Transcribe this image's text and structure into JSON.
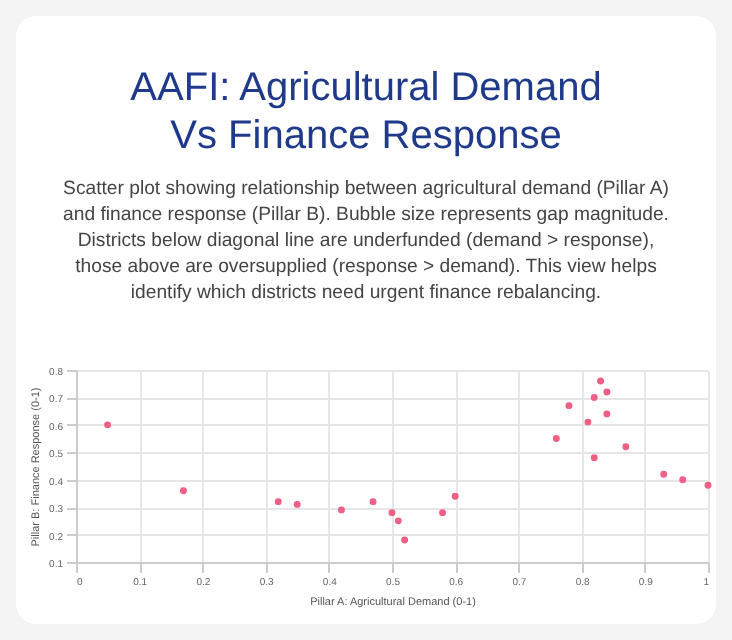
{
  "chart_data": {
    "type": "scatter",
    "title": "AAFI: Agricultural Demand\nVs Finance Response",
    "subtitle": "Scatter plot showing relationship between agricultural demand (Pillar A) and finance response (Pillar B). Bubble size represents gap magnitude. Districts below diagonal line are underfunded (demand > response), those above are oversupplied (response > demand). This view helps identify which districts need urgent finance rebalancing.",
    "xlabel": "Pillar A: Agricultural Demand (0-1)",
    "ylabel": "Pillar B: Finance Response (0-1)",
    "x": [
      0.05,
      0.17,
      0.32,
      0.35,
      0.42,
      0.47,
      0.5,
      0.51,
      0.52,
      0.58,
      0.6,
      0.76,
      0.78,
      0.81,
      0.82,
      0.82,
      0.83,
      0.84,
      0.84,
      0.87,
      0.93,
      0.96,
      1.0
    ],
    "series": [
      {
        "color": "#ef5f86",
        "values": [
          0.6,
          0.36,
          0.32,
          0.31,
          0.29,
          0.32,
          0.28,
          0.25,
          0.18,
          0.28,
          0.34,
          0.55,
          0.67,
          0.61,
          0.7,
          0.48,
          0.76,
          0.72,
          0.64,
          0.52,
          0.42,
          0.4,
          0.38
        ]
      }
    ],
    "xlim": [
      0,
      1
    ],
    "xticks": [
      0,
      0.1,
      0.2,
      0.3,
      0.4,
      0.5,
      0.6,
      0.7,
      0.8,
      0.9,
      1
    ],
    "ylim": [
      0.1,
      0.8
    ],
    "yticks": [
      0.1,
      0.2,
      0.3,
      0.4,
      0.5,
      0.6,
      0.7,
      0.8
    ],
    "grid": true,
    "marker": "circle"
  }
}
